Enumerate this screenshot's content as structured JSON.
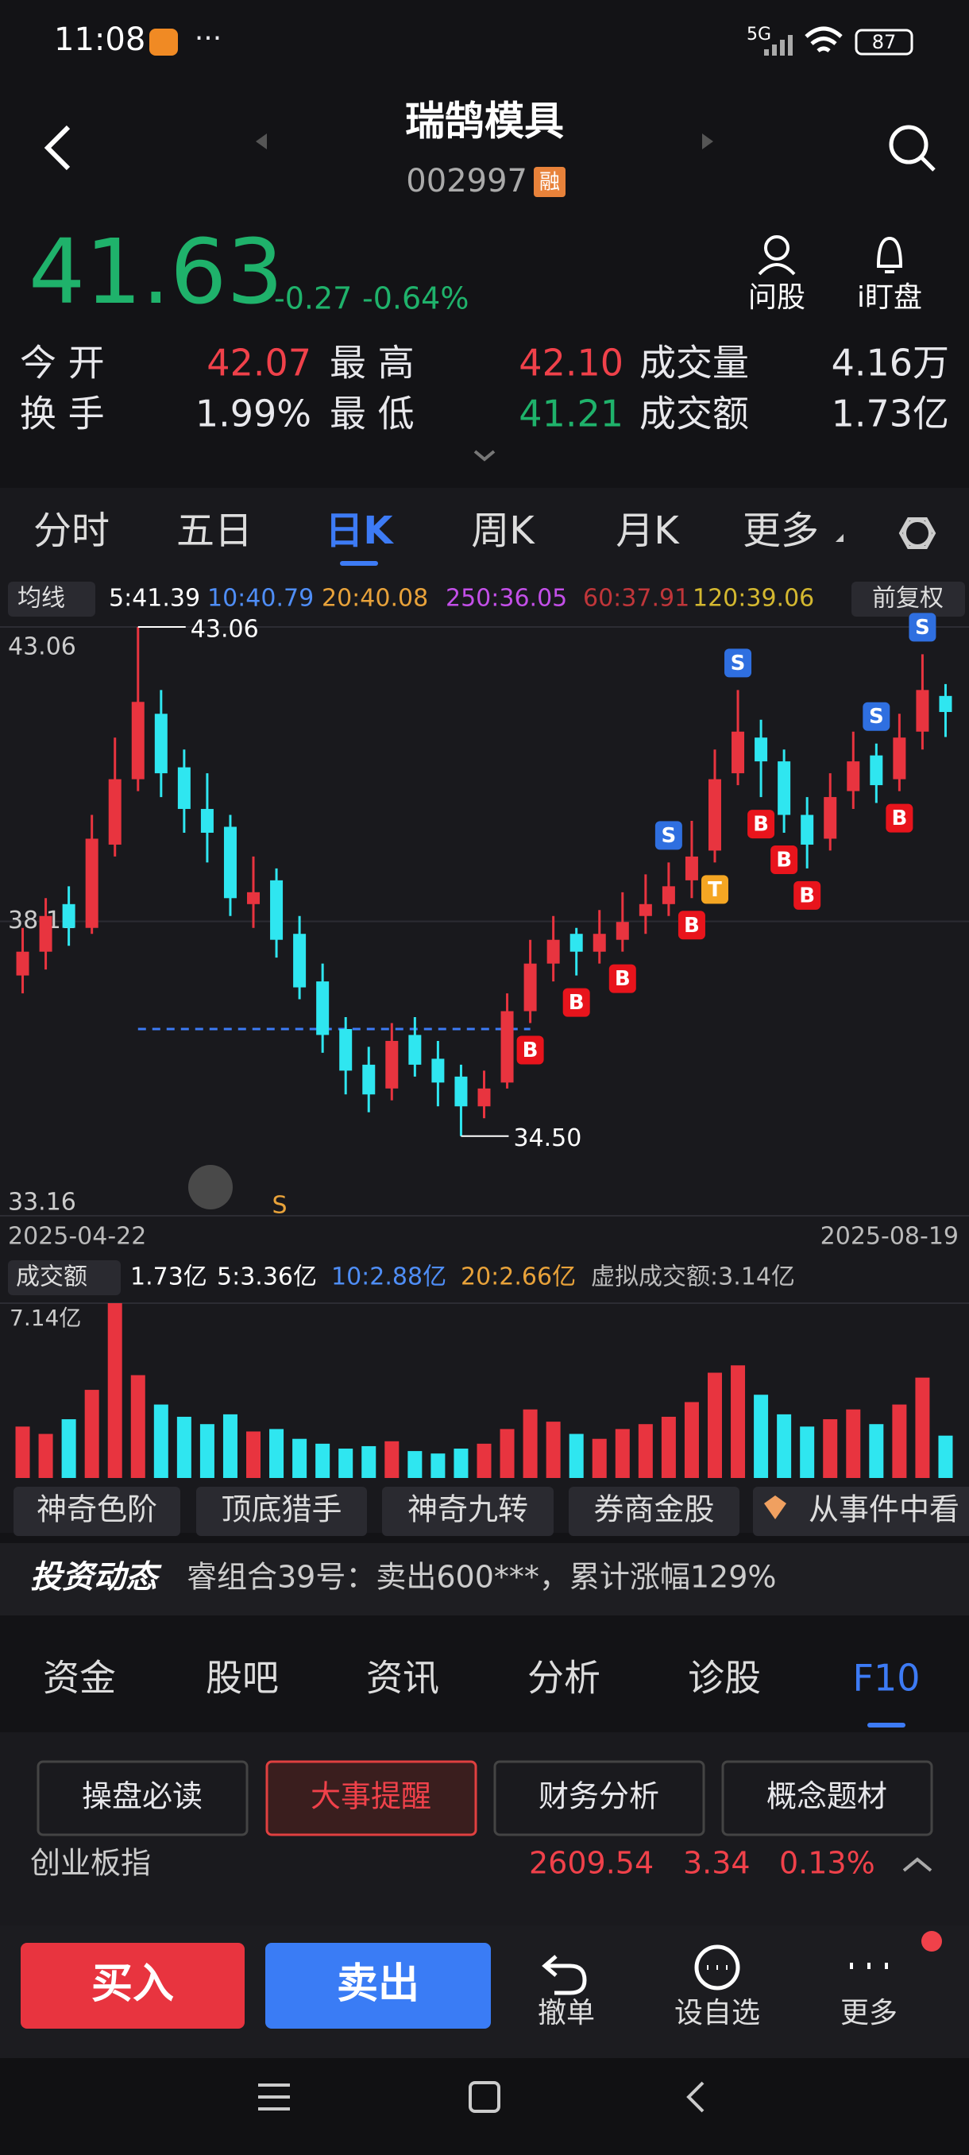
{
  "status": {
    "time": "11:08",
    "network": "5G",
    "battery": "87"
  },
  "header": {
    "title": "瑞鹄模具",
    "code": "002997",
    "tag": "融"
  },
  "quote": {
    "price": "41.63",
    "change": "-0.27",
    "percent": "-0.64%",
    "color": "#1fb26b"
  },
  "actions": [
    "问股",
    "i盯盘"
  ],
  "stats": [
    [
      {
        "text": "今 开"
      },
      {
        "text": "42.07",
        "color": "#f0414a"
      },
      {
        "text": "最 高"
      },
      {
        "text": "42.10",
        "color": "#f0414a"
      },
      {
        "text": "成交量"
      },
      {
        "text": "4.16万"
      }
    ],
    [
      {
        "text": "换 手"
      },
      {
        "text": "1.99%"
      },
      {
        "text": "最 低"
      },
      {
        "text": "41.21",
        "color": "#1fb26b"
      },
      {
        "text": "成交额"
      },
      {
        "text": "1.73亿"
      }
    ]
  ],
  "tabs": {
    "items": [
      "分时",
      "五日",
      "日K",
      "周K",
      "月K",
      "更多"
    ],
    "active": 2
  },
  "ma_legend": {
    "label": "均线",
    "items": [
      {
        "text": "5:41.39",
        "color": "#ffffff"
      },
      {
        "text": "10:40.79",
        "color": "#4f8ef7"
      },
      {
        "text": "20:40.08",
        "color": "#e8a23a"
      },
      {
        "text": "250:36.05",
        "color": "#c34fe8"
      },
      {
        "text": "60:37.91",
        "color": "#c0363a"
      },
      {
        "text": "120:39.06",
        "color": "#d4b830"
      }
    ],
    "adjust": "前复权"
  },
  "kline": {
    "ylim": [
      33.16,
      43.06
    ],
    "yticks": [
      33.16,
      38.11,
      43.06
    ],
    "dates": [
      "2025-04-22",
      "2025-08-19"
    ],
    "up_color": "#e8343f",
    "down_color": "#2fe6f0",
    "high_label": "43.06",
    "low_label": "34.50",
    "support_line": 36.3,
    "footer_label": "S",
    "candles": [
      [
        37.2,
        37.6,
        38.0,
        36.9
      ],
      [
        37.6,
        38.2,
        38.5,
        37.3
      ],
      [
        38.4,
        38.0,
        38.7,
        37.7
      ],
      [
        38.0,
        39.5,
        39.9,
        37.9
      ],
      [
        39.4,
        40.5,
        41.2,
        39.2
      ],
      [
        40.5,
        41.8,
        43.06,
        40.3
      ],
      [
        41.6,
        40.6,
        42.0,
        40.2
      ],
      [
        40.7,
        40.0,
        41.0,
        39.6
      ],
      [
        40.0,
        39.6,
        40.6,
        39.1
      ],
      [
        39.7,
        38.5,
        39.9,
        38.2
      ],
      [
        38.4,
        38.6,
        39.2,
        38.0
      ],
      [
        38.8,
        37.8,
        39.0,
        37.5
      ],
      [
        37.9,
        37.0,
        38.2,
        36.8
      ],
      [
        37.1,
        36.2,
        37.4,
        35.9
      ],
      [
        36.3,
        35.6,
        36.5,
        35.2
      ],
      [
        35.7,
        35.2,
        36.0,
        34.9
      ],
      [
        35.3,
        36.1,
        36.4,
        35.1
      ],
      [
        36.2,
        35.7,
        36.5,
        35.5
      ],
      [
        35.8,
        35.4,
        36.1,
        35.0
      ],
      [
        35.5,
        35.0,
        35.7,
        34.5
      ],
      [
        35.0,
        35.3,
        35.6,
        34.8
      ],
      [
        35.4,
        36.6,
        36.9,
        35.3
      ],
      [
        36.6,
        37.4,
        37.8,
        36.4
      ],
      [
        37.4,
        37.8,
        38.2,
        37.1
      ],
      [
        37.9,
        37.6,
        38.0,
        37.2
      ],
      [
        37.6,
        37.9,
        38.3,
        37.4
      ],
      [
        37.8,
        38.1,
        38.6,
        37.6
      ],
      [
        38.2,
        38.4,
        38.9,
        37.9
      ],
      [
        38.4,
        38.7,
        39.1,
        38.2
      ],
      [
        38.8,
        39.2,
        39.8,
        38.5
      ],
      [
        39.3,
        40.5,
        41.0,
        39.1
      ],
      [
        40.6,
        41.3,
        42.0,
        40.4
      ],
      [
        41.2,
        40.8,
        41.5,
        40.2
      ],
      [
        40.8,
        39.9,
        41.0,
        39.6
      ],
      [
        39.9,
        39.4,
        40.2,
        39.0
      ],
      [
        39.5,
        40.2,
        40.6,
        39.3
      ],
      [
        40.3,
        40.8,
        41.3,
        40.0
      ],
      [
        40.9,
        40.4,
        41.1,
        40.1
      ],
      [
        40.5,
        41.2,
        41.6,
        40.3
      ],
      [
        41.3,
        42.0,
        42.6,
        41.0
      ],
      [
        41.9,
        41.63,
        42.1,
        41.21
      ]
    ],
    "signals": [
      {
        "label": "B",
        "index": 22
      },
      {
        "label": "B",
        "index": 24
      },
      {
        "label": "B",
        "index": 26
      },
      {
        "label": "S",
        "index": 28
      },
      {
        "label": "B",
        "index": 29
      },
      {
        "label": "T",
        "index": 30
      },
      {
        "label": "S",
        "index": 31
      },
      {
        "label": "B",
        "index": 32
      },
      {
        "label": "B",
        "index": 33
      },
      {
        "label": "B",
        "index": 34
      },
      {
        "label": "S",
        "index": 37
      },
      {
        "label": "B",
        "index": 38
      },
      {
        "label": "S",
        "index": 39
      }
    ]
  },
  "volume": {
    "label": "成交额",
    "items": [
      {
        "text": "1.73亿",
        "color": "#ffffff"
      },
      {
        "text": "5:3.36亿",
        "color": "#ffffff"
      },
      {
        "text": "10:2.88亿",
        "color": "#4f8ef7"
      },
      {
        "text": "20:2.66亿",
        "color": "#e8a23a"
      },
      {
        "text": "虚拟成交额:3.14亿",
        "color": "#bbbbbb"
      }
    ],
    "ylim": [
      0,
      7.14
    ],
    "yticks": [
      {
        "value": 7.14,
        "label": "7.14亿"
      }
    ],
    "values": [
      2.1,
      1.8,
      2.4,
      3.6,
      7.14,
      4.2,
      3.0,
      2.5,
      2.2,
      2.6,
      1.9,
      2.0,
      1.6,
      1.4,
      1.2,
      1.3,
      1.5,
      1.1,
      1.0,
      1.2,
      1.4,
      2.0,
      2.8,
      2.3,
      1.8,
      1.6,
      2.0,
      2.2,
      2.5,
      3.1,
      4.3,
      4.6,
      3.4,
      2.6,
      2.1,
      2.4,
      2.8,
      2.2,
      3.0,
      4.1,
      1.73
    ]
  },
  "chips": [
    "神奇色阶",
    "顶底猎手",
    "神奇九转",
    "券商金股",
    "从事件中看"
  ],
  "news": {
    "title": "投资动态",
    "text": "睿组合39号：卖出600***，累计涨幅129%"
  },
  "f_tabs": {
    "items": [
      "资金",
      "股吧",
      "资讯",
      "分析",
      "诊股",
      "F10"
    ],
    "active": 5
  },
  "f10_buttons": {
    "items": [
      "操盘必读",
      "大事提醒",
      "财务分析",
      "概念题材"
    ],
    "active": 1
  },
  "index_row": [
    "创业板指",
    "2609.54",
    "3.34",
    "0.13%"
  ],
  "bottom": {
    "buy": "买入",
    "sell": "卖出",
    "actions": [
      "撤单",
      "设自选",
      "更多"
    ]
  }
}
